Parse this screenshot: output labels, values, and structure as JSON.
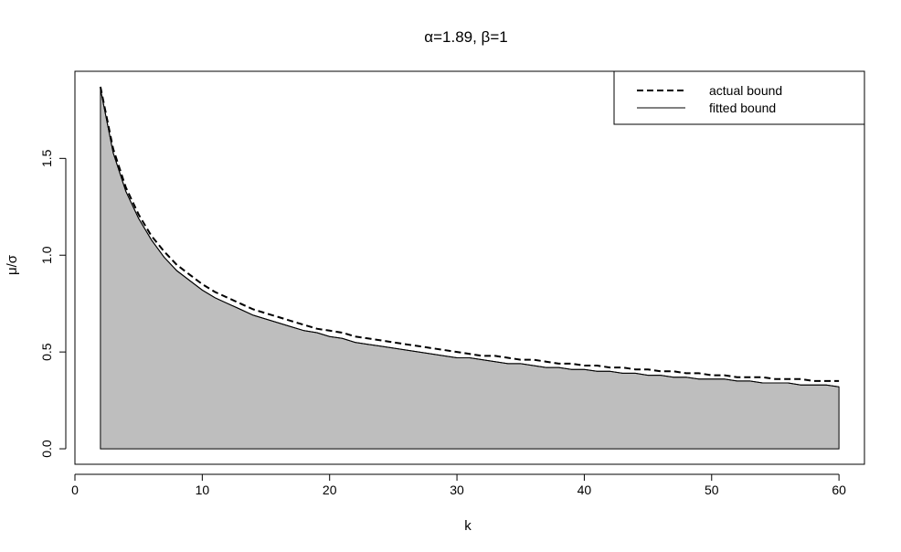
{
  "chart_data": {
    "type": "area",
    "title": "α=1.89, β=1",
    "xlabel": "k",
    "ylabel": "μ/σ",
    "xlim": [
      0,
      62
    ],
    "ylim": [
      -0.08,
      1.95
    ],
    "x_ticks": [
      0,
      10,
      20,
      30,
      40,
      50,
      60
    ],
    "y_ticks": [
      0.0,
      0.5,
      1.0,
      1.5
    ],
    "x_tick_labels": [
      "0",
      "10",
      "20",
      "30",
      "40",
      "50",
      "60"
    ],
    "y_tick_labels": [
      "0.0",
      "0.5",
      "1.0",
      "1.5"
    ],
    "grid": false,
    "legend_position": "top-right",
    "fill_color": "#bebebe",
    "series": [
      {
        "name": "actual bound",
        "line_style": "dashed",
        "x": [
          2,
          3,
          4,
          5,
          6,
          7,
          8,
          9,
          10,
          11,
          12,
          13,
          14,
          15,
          16,
          17,
          18,
          19,
          20,
          21,
          22,
          23,
          24,
          25,
          26,
          27,
          28,
          29,
          30,
          31,
          32,
          33,
          34,
          35,
          36,
          37,
          38,
          39,
          40,
          41,
          42,
          43,
          44,
          45,
          46,
          47,
          48,
          49,
          50,
          51,
          52,
          53,
          54,
          55,
          56,
          57,
          58,
          59,
          60
        ],
        "y": [
          1.87,
          1.55,
          1.35,
          1.21,
          1.1,
          1.02,
          0.95,
          0.9,
          0.85,
          0.81,
          0.78,
          0.75,
          0.72,
          0.7,
          0.68,
          0.66,
          0.64,
          0.62,
          0.61,
          0.6,
          0.58,
          0.57,
          0.56,
          0.55,
          0.54,
          0.53,
          0.52,
          0.51,
          0.5,
          0.49,
          0.48,
          0.48,
          0.47,
          0.46,
          0.46,
          0.45,
          0.44,
          0.44,
          0.43,
          0.43,
          0.42,
          0.42,
          0.41,
          0.41,
          0.4,
          0.4,
          0.39,
          0.39,
          0.38,
          0.38,
          0.37,
          0.37,
          0.37,
          0.36,
          0.36,
          0.36,
          0.35,
          0.35,
          0.35
        ]
      },
      {
        "name": "fitted bound",
        "line_style": "solid",
        "x": [
          2,
          3,
          4,
          5,
          6,
          7,
          8,
          9,
          10,
          11,
          12,
          13,
          14,
          15,
          16,
          17,
          18,
          19,
          20,
          21,
          22,
          23,
          24,
          25,
          26,
          27,
          28,
          29,
          30,
          31,
          32,
          33,
          34,
          35,
          36,
          37,
          38,
          39,
          40,
          41,
          42,
          43,
          44,
          45,
          46,
          47,
          48,
          49,
          50,
          51,
          52,
          53,
          54,
          55,
          56,
          57,
          58,
          59,
          60
        ],
        "y": [
          1.86,
          1.53,
          1.33,
          1.19,
          1.08,
          0.99,
          0.92,
          0.87,
          0.82,
          0.78,
          0.75,
          0.72,
          0.69,
          0.67,
          0.65,
          0.63,
          0.61,
          0.6,
          0.58,
          0.57,
          0.55,
          0.54,
          0.53,
          0.52,
          0.51,
          0.5,
          0.49,
          0.48,
          0.47,
          0.47,
          0.46,
          0.45,
          0.44,
          0.44,
          0.43,
          0.42,
          0.42,
          0.41,
          0.41,
          0.4,
          0.4,
          0.39,
          0.39,
          0.38,
          0.38,
          0.37,
          0.37,
          0.36,
          0.36,
          0.36,
          0.35,
          0.35,
          0.34,
          0.34,
          0.34,
          0.33,
          0.33,
          0.33,
          0.32
        ]
      }
    ]
  }
}
